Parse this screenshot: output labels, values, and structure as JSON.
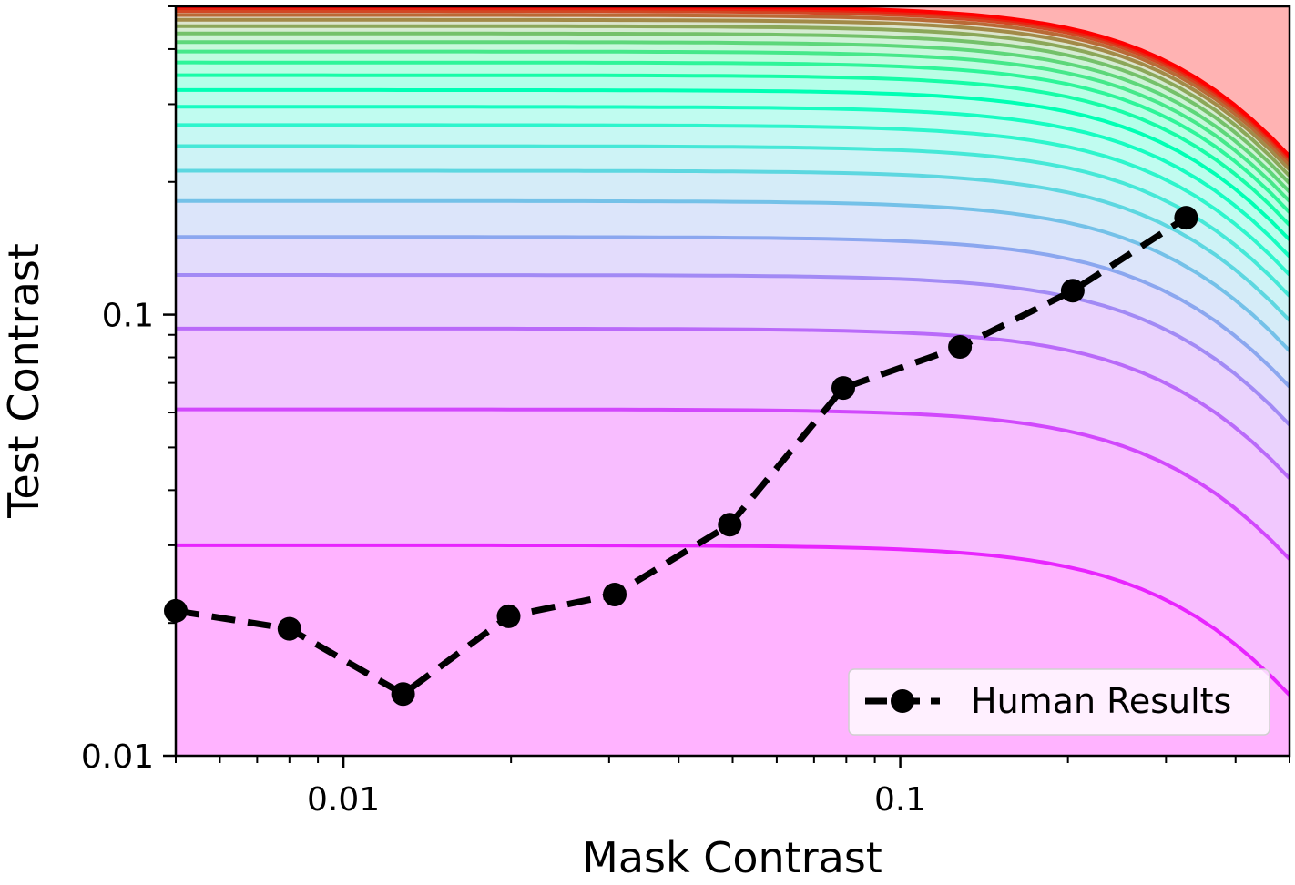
{
  "chart_data": {
    "type": "line",
    "title": "",
    "xlabel": "Mask Contrast",
    "ylabel": "Test Contrast",
    "x_scale": "log",
    "y_scale": "log",
    "xlim": [
      0.005,
      0.5
    ],
    "ylim": [
      0.01,
      0.5
    ],
    "x_ticks": [
      {
        "value": 0.01,
        "label": "0.01"
      },
      {
        "value": 0.1,
        "label": "0.1"
      }
    ],
    "y_ticks": [
      {
        "value": 0.01,
        "label": "0.01"
      },
      {
        "value": 0.1,
        "label": "0.1"
      }
    ],
    "grid": false,
    "legend_position": "bottom-right",
    "series": [
      {
        "name": "Human Results",
        "style": "dashed line with circle markers",
        "color": "#000000",
        "x": [
          0.005,
          0.008,
          0.0128,
          0.0198,
          0.0307,
          0.0494,
          0.079,
          0.128,
          0.204,
          0.326
        ],
        "y": [
          0.0213,
          0.0194,
          0.0138,
          0.0207,
          0.0232,
          0.0334,
          0.0682,
          0.0845,
          0.1133,
          0.1659
        ]
      }
    ],
    "contours": {
      "description": "filled contour background with rainbow-colored iso-lines",
      "colormap": "rainbow",
      "levels": [
        0.03,
        0.061,
        0.093,
        0.123,
        0.15,
        0.181,
        0.212,
        0.241,
        0.269,
        0.296,
        0.323,
        0.349,
        0.373,
        0.395,
        0.415,
        0.434,
        0.451,
        0.466,
        0.478,
        0.488,
        0.495,
        0.5
      ],
      "knee_x": 0.2
    }
  }
}
